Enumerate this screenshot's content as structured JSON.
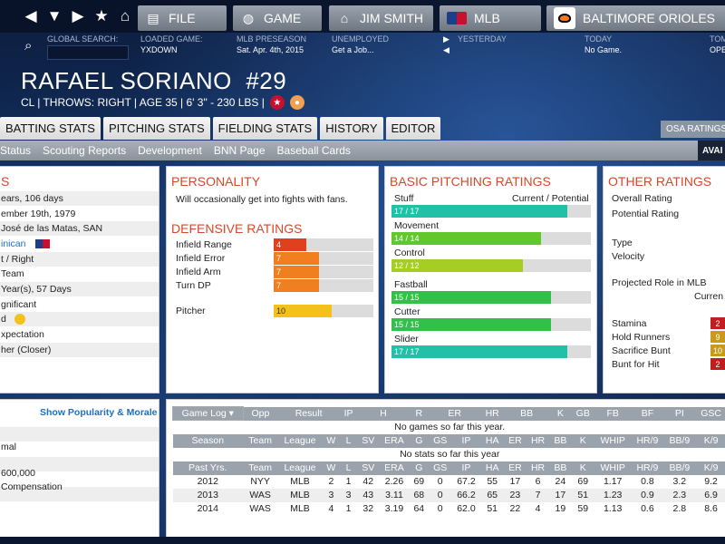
{
  "nav": {
    "file": "FILE",
    "game": "GAME",
    "manager": "JIM SMITH",
    "league": "MLB",
    "team": "BALTIMORE ORIOLES"
  },
  "info": {
    "global_search_label": "GLOBAL SEARCH:",
    "loaded_game_label": "LOADED GAME:",
    "loaded_game_value": "YXDOWN",
    "preseason_label": "MLB PRESEASON",
    "preseason_value": "Sat. Apr. 4th, 2015",
    "unemployed_label": "UNEMPLOYED",
    "unemployed_value": "Get a Job...",
    "yesterday_label": "YESTERDAY",
    "today_label": "TODAY",
    "today_value": "No Game.",
    "tomorrow_label": "TOM",
    "tomorrow_value": "OPE"
  },
  "player": {
    "name": "RAFAEL SORIANO",
    "number": "#29",
    "line": "CL | THROWS: RIGHT  |  AGE 35  |  6' 3\" - 230 LBS  |"
  },
  "tabs": [
    "BATTING STATS",
    "PITCHING STATS",
    "FIELDING STATS",
    "HISTORY",
    "EDITOR"
  ],
  "osa_label": "OSA RATINGS",
  "subnav": [
    "Status",
    "Scouting Reports",
    "Development",
    "BNN Page",
    "Baseball Cards"
  ],
  "avai_label": "AVAI",
  "bio": {
    "title": "S",
    "rows": [
      "ears, 106 days",
      "ember 19th, 1979",
      "José de las Matas, SAN",
      "inican",
      "t / Right",
      "Team",
      "Year(s), 57 Days",
      "gnificant",
      "d",
      "xpectation",
      "her (Closer)"
    ]
  },
  "personality": {
    "title": "PERSONALITY",
    "text": "Will occasionally get into fights with fans."
  },
  "defensive": {
    "title": "DEFENSIVE RATINGS",
    "ratings": [
      {
        "label": "Infield Range",
        "value": "4",
        "pct": 0.33,
        "color": "#e0401c"
      },
      {
        "label": "Infield Error",
        "value": "7",
        "pct": 0.45,
        "color": "#ef7f1f"
      },
      {
        "label": "Infield Arm",
        "value": "7",
        "pct": 0.45,
        "color": "#ef7f1f"
      },
      {
        "label": "Turn DP",
        "value": "7",
        "pct": 0.45,
        "color": "#ef7f1f"
      }
    ],
    "pitcher_label": "Pitcher",
    "pitcher_value": "10",
    "pitcher_pct": 0.58,
    "pitcher_color": "#f2c21a"
  },
  "basic_pitching": {
    "title": "BASIC PITCHING RATINGS",
    "header": "Current / Potential",
    "ratings": [
      {
        "label": "Stuff",
        "value": "17 / 17",
        "pct": 0.88,
        "color": "#22c0a6"
      },
      {
        "label": "Movement",
        "value": "14 / 14",
        "pct": 0.75,
        "color": "#62c72a"
      },
      {
        "label": "Control",
        "value": "12 / 12",
        "pct": 0.66,
        "color": "#a6cd24"
      }
    ],
    "pitches": [
      {
        "label": "Fastball",
        "value": "15 / 15",
        "pct": 0.8,
        "color": "#33c04a"
      },
      {
        "label": "Cutter",
        "value": "15 / 15",
        "pct": 0.8,
        "color": "#33c04a"
      },
      {
        "label": "Slider",
        "value": "17 / 17",
        "pct": 0.88,
        "color": "#22c0a6"
      }
    ]
  },
  "other": {
    "title": "OTHER RATINGS",
    "overall_label": "Overall Rating",
    "potential_label": "Potential Rating",
    "type_label": "Type",
    "velocity_label": "Velocity",
    "role_label": "Projected Role in MLB",
    "role_value": "Curren",
    "items": [
      {
        "label": "Stamina",
        "value": "2",
        "color": "#c21e1e"
      },
      {
        "label": "Hold Runners",
        "value": "9",
        "color": "#c99a17"
      },
      {
        "label": "Sacrifice Bunt",
        "value": "10",
        "color": "#c99a17"
      },
      {
        "label": "Bunt for Hit",
        "value": "2",
        "color": "#c21e1e"
      }
    ]
  },
  "misc": {
    "show_popularity": "Show Popularity & Morale",
    "rows": [
      "mal",
      "600,000",
      "Compensation"
    ]
  },
  "game_log": {
    "dropdown": "Game Log",
    "headers": [
      "Opp",
      "Result",
      "IP",
      "H",
      "R",
      "ER",
      "HR",
      "BB",
      "K",
      "GB",
      "FB",
      "BF",
      "PI",
      "GSC"
    ],
    "empty": "No games so far this year."
  },
  "season": {
    "headers": [
      "Season",
      "Team",
      "League",
      "W",
      "L",
      "SV",
      "ERA",
      "G",
      "GS",
      "IP",
      "HA",
      "ER",
      "HR",
      "BB",
      "K",
      "WHIP",
      "HR/9",
      "BB/9",
      "K/9"
    ],
    "empty": "No stats so far this year"
  },
  "past": {
    "headers": [
      "Past Yrs.",
      "Team",
      "League",
      "W",
      "L",
      "SV",
      "ERA",
      "G",
      "GS",
      "IP",
      "HA",
      "ER",
      "HR",
      "BB",
      "K",
      "WHIP",
      "HR/9",
      "BB/9",
      "K/9"
    ],
    "rows": [
      [
        "2012",
        "NYY",
        "MLB",
        "2",
        "1",
        "42",
        "2.26",
        "69",
        "0",
        "67.2",
        "55",
        "17",
        "6",
        "24",
        "69",
        "1.17",
        "0.8",
        "3.2",
        "9.2"
      ],
      [
        "2013",
        "WAS",
        "MLB",
        "3",
        "3",
        "43",
        "3.11",
        "68",
        "0",
        "66.2",
        "65",
        "23",
        "7",
        "17",
        "51",
        "1.23",
        "0.9",
        "2.3",
        "6.9"
      ],
      [
        "2014",
        "WAS",
        "MLB",
        "4",
        "1",
        "32",
        "3.19",
        "64",
        "0",
        "62.0",
        "51",
        "22",
        "4",
        "19",
        "59",
        "1.13",
        "0.6",
        "2.8",
        "8.6"
      ]
    ]
  }
}
